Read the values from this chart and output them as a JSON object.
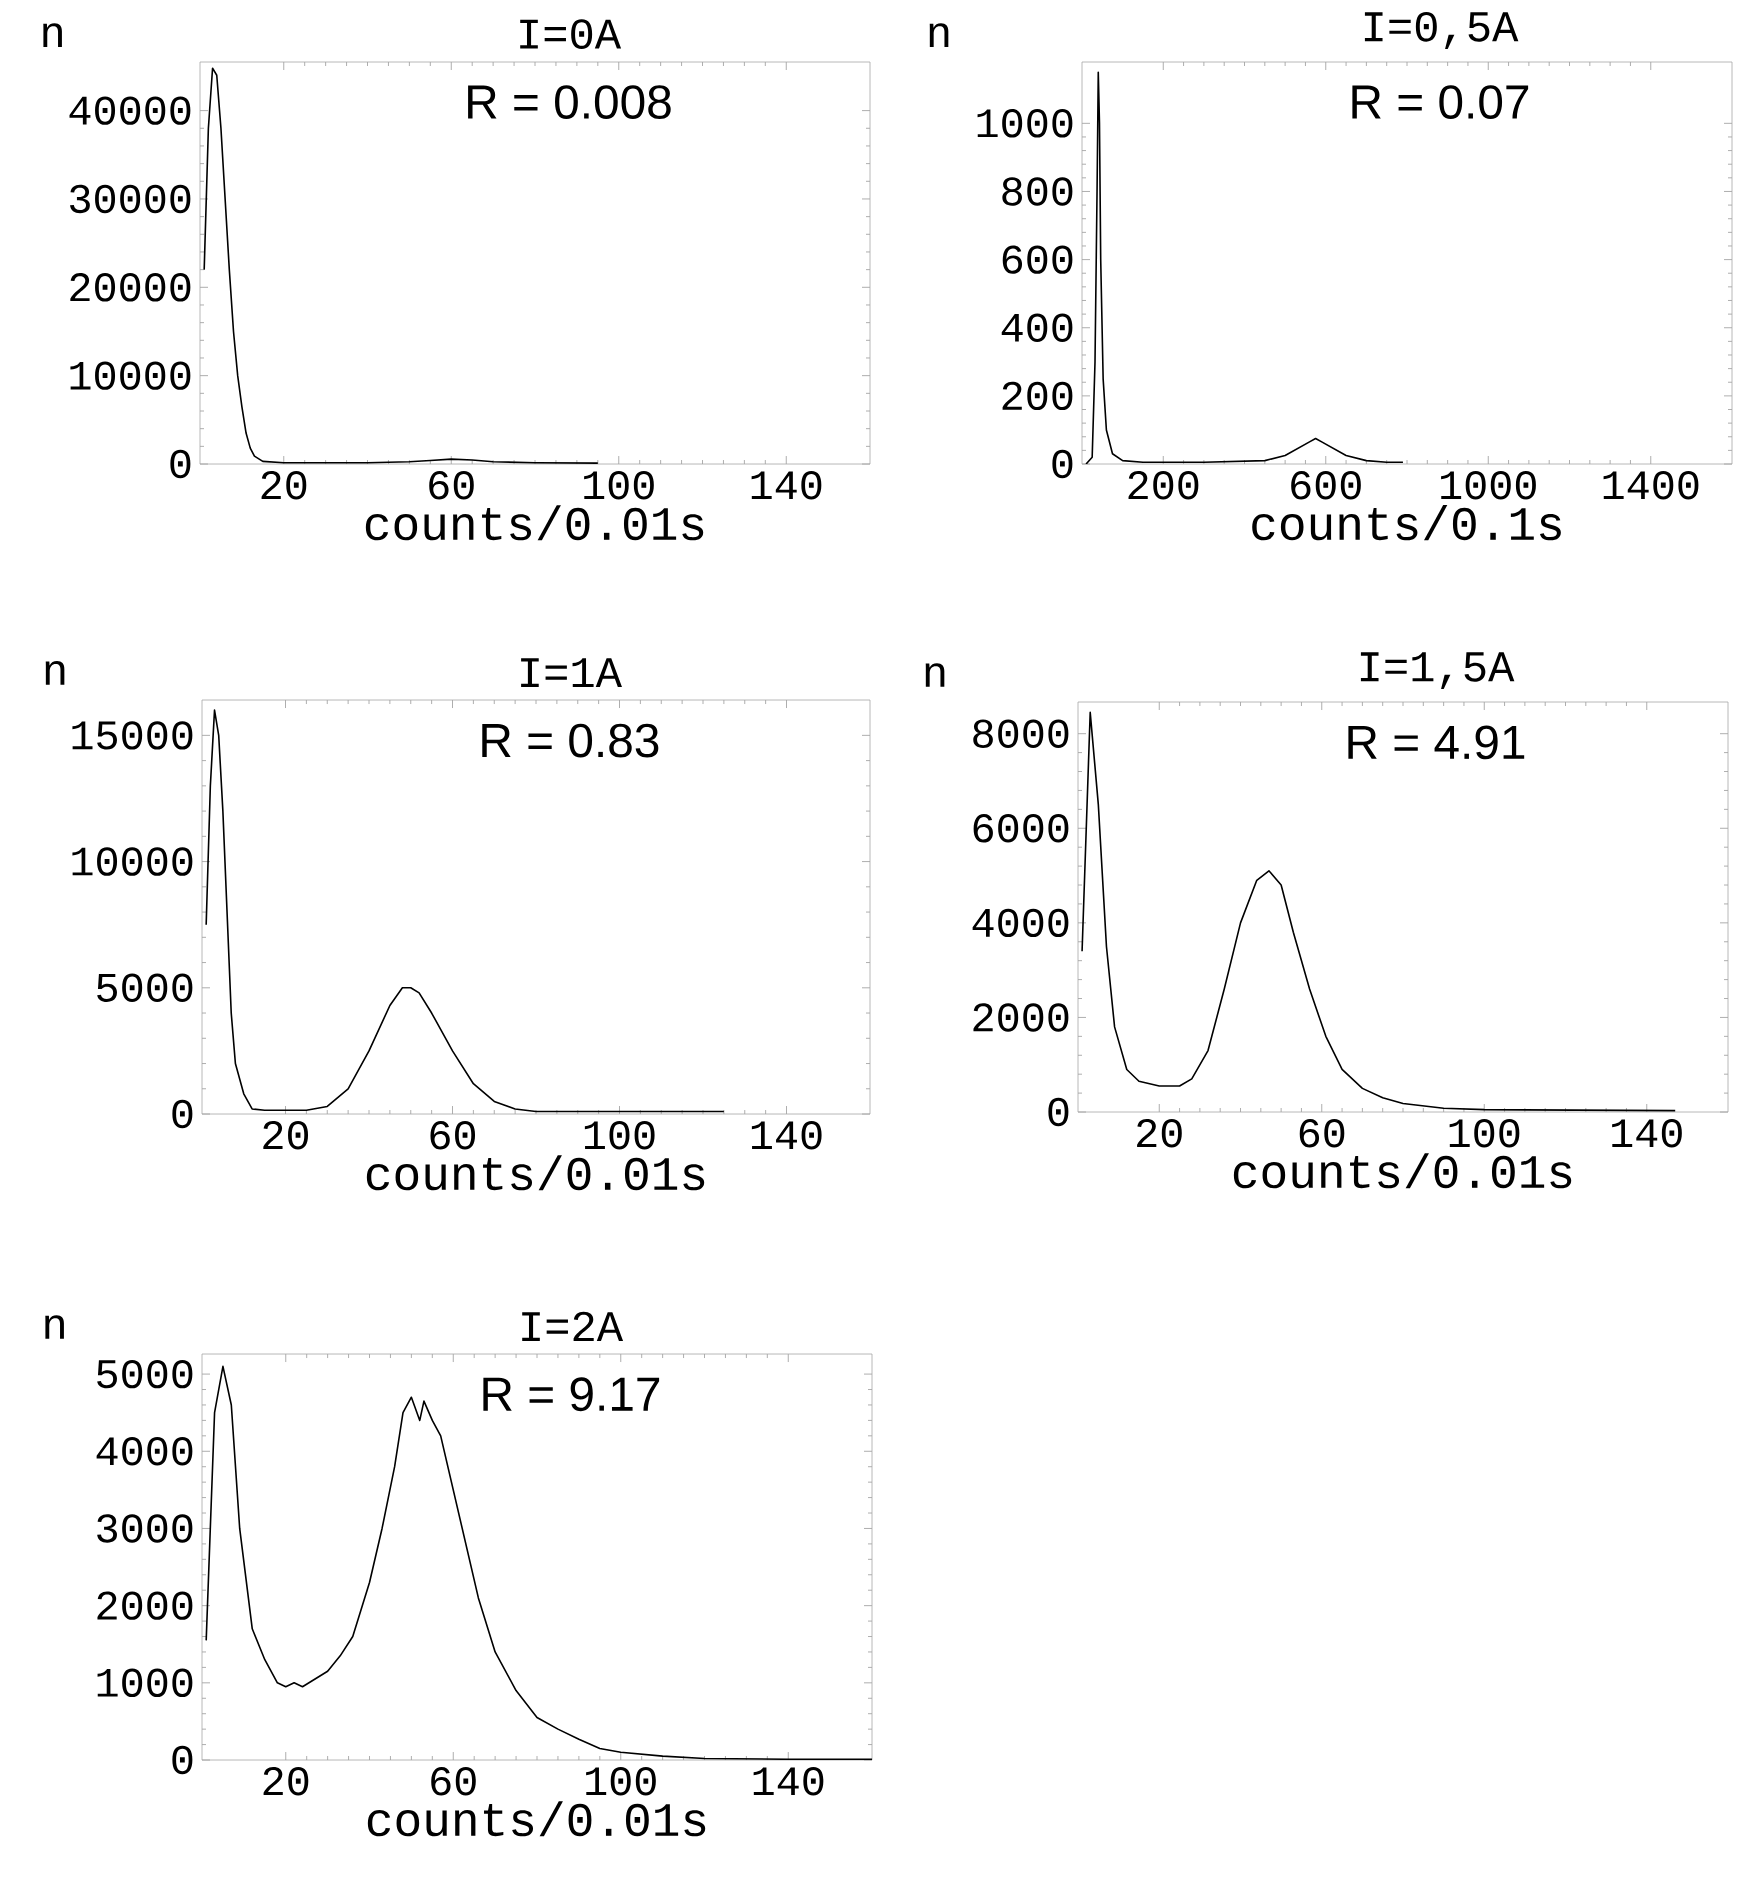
{
  "chart_data": [
    {
      "type": "line",
      "title": "I=0A",
      "xlabel": "counts/0.01s",
      "ylabel": "n",
      "annotations": [
        "R = 0.008"
      ],
      "color": "#000000",
      "xlim": [
        0,
        160
      ],
      "ylim": [
        0,
        45500
      ],
      "xticks": [
        20,
        60,
        100,
        140
      ],
      "yticks": [
        0,
        10000,
        20000,
        30000,
        40000
      ],
      "x": [
        1,
        2,
        3,
        4,
        5,
        6,
        7,
        8,
        9,
        10,
        11,
        12,
        13,
        15,
        20,
        40,
        50,
        55,
        60,
        65,
        70,
        80,
        95
      ],
      "values": [
        22000,
        38000,
        44800,
        44000,
        38000,
        30000,
        22000,
        15000,
        10000,
        6500,
        3500,
        1800,
        900,
        300,
        150,
        150,
        250,
        400,
        550,
        450,
        250,
        150,
        100
      ]
    },
    {
      "type": "line",
      "title": "I=0,5A",
      "xlabel": "counts/0.1s",
      "ylabel": "n",
      "annotations": [
        "R = 0.07"
      ],
      "color": "#000000",
      "xlim": [
        0,
        1600
      ],
      "ylim": [
        0,
        1180
      ],
      "xticks": [
        200,
        600,
        1000,
        1400
      ],
      "yticks": [
        0,
        200,
        400,
        600,
        800,
        1000
      ],
      "x": [
        10,
        25,
        32,
        37,
        40,
        43,
        46,
        52,
        60,
        75,
        100,
        150,
        300,
        450,
        500,
        530,
        560,
        575,
        590,
        620,
        650,
        700,
        750,
        790
      ],
      "values": [
        0,
        20,
        300,
        800,
        1150,
        1000,
        600,
        250,
        100,
        30,
        10,
        5,
        5,
        10,
        25,
        45,
        65,
        75,
        65,
        45,
        25,
        10,
        5,
        5
      ]
    },
    {
      "type": "line",
      "title": "I=1A",
      "xlabel": "counts/0.01s",
      "ylabel": "n",
      "annotations": [
        "R = 0.83"
      ],
      "color": "#000000",
      "xlim": [
        0,
        160
      ],
      "ylim": [
        0,
        16400
      ],
      "xticks": [
        20,
        60,
        100,
        140
      ],
      "yticks": [
        0,
        5000,
        10000,
        15000
      ],
      "x": [
        1,
        2,
        3,
        4,
        5,
        6,
        7,
        8,
        10,
        12,
        15,
        20,
        25,
        30,
        35,
        40,
        45,
        48,
        50,
        52,
        55,
        60,
        65,
        70,
        75,
        80,
        100,
        125
      ],
      "values": [
        7500,
        13000,
        16000,
        15000,
        12000,
        8000,
        4000,
        2000,
        800,
        200,
        150,
        150,
        150,
        300,
        1000,
        2500,
        4300,
        5000,
        5000,
        4800,
        4000,
        2500,
        1200,
        500,
        200,
        100,
        100,
        100
      ]
    },
    {
      "type": "line",
      "title": "I=1,5A",
      "xlabel": "counts/0.01s",
      "ylabel": "n",
      "annotations": [
        "R = 4.91"
      ],
      "color": "#000000",
      "xlim": [
        0,
        160
      ],
      "ylim": [
        0,
        8670
      ],
      "xticks": [
        20,
        60,
        100,
        140
      ],
      "yticks": [
        0,
        2000,
        4000,
        6000,
        8000
      ],
      "x": [
        1,
        3,
        5,
        7,
        9,
        12,
        15,
        20,
        25,
        28,
        32,
        36,
        40,
        44,
        47,
        50,
        53,
        57,
        61,
        65,
        70,
        75,
        80,
        90,
        100,
        147
      ],
      "values": [
        3400,
        8450,
        6500,
        3500,
        1800,
        900,
        650,
        550,
        550,
        700,
        1300,
        2600,
        4000,
        4900,
        5100,
        4800,
        3800,
        2600,
        1600,
        900,
        500,
        300,
        180,
        80,
        50,
        30
      ]
    },
    {
      "type": "line",
      "title": "I=2A",
      "xlabel": "counts/0.01s",
      "ylabel": "n",
      "annotations": [
        "R = 9.17"
      ],
      "color": "#000000",
      "xlim": [
        0,
        160
      ],
      "ylim": [
        0,
        5260
      ],
      "xticks": [
        20,
        60,
        100,
        140
      ],
      "yticks": [
        0,
        1000,
        2000,
        3000,
        4000,
        5000
      ],
      "x": [
        1,
        3,
        5,
        7,
        9,
        12,
        15,
        18,
        20,
        22,
        24,
        27,
        30,
        33,
        36,
        40,
        43,
        46,
        48,
        50,
        52,
        53,
        55,
        57,
        60,
        63,
        66,
        70,
        75,
        80,
        85,
        90,
        95,
        100,
        110,
        120,
        140,
        160
      ],
      "values": [
        1550,
        4500,
        5100,
        4600,
        3000,
        1700,
        1300,
        1000,
        950,
        1000,
        950,
        1050,
        1150,
        1350,
        1600,
        2300,
        3000,
        3800,
        4500,
        4700,
        4400,
        4650,
        4400,
        4200,
        3500,
        2800,
        2100,
        1400,
        900,
        550,
        400,
        270,
        150,
        100,
        50,
        20,
        10,
        10
      ]
    }
  ]
}
